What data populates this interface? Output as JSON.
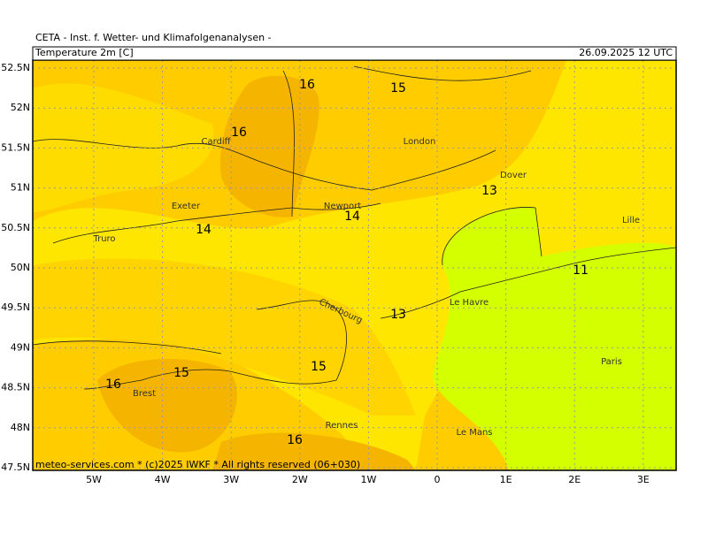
{
  "header": {
    "line": "CETA - Inst. f. Wetter- und Klimafolgenanalysen -",
    "title": "Temperature 2m [C]",
    "timestamp": "26.09.2025 12 UTC"
  },
  "axes": {
    "lat_labels": [
      "52.5N",
      "52N",
      "51.5N",
      "51N",
      "50.5N",
      "50N",
      "49.5N",
      "49N",
      "48.5N",
      "48N",
      "47.5N"
    ],
    "lon_labels": [
      "5W",
      "4W",
      "3W",
      "2W",
      "1W",
      "0",
      "1E",
      "2E",
      "3E"
    ]
  },
  "contour_labels": [
    "16",
    "15",
    "16",
    "13",
    "14",
    "14",
    "11",
    "13",
    "15",
    "15",
    "16",
    "16"
  ],
  "cities": [
    "Cardiff",
    "London",
    "Dover",
    "Exeter",
    "Newport",
    "Lille",
    "Truro",
    "Cherbourg",
    "Le Havre",
    "Paris",
    "Brest",
    "Rennes",
    "Le Mans"
  ],
  "footer": "meteo-services.com * (c)2025 IWKF * All rights reserved (06+030)"
}
